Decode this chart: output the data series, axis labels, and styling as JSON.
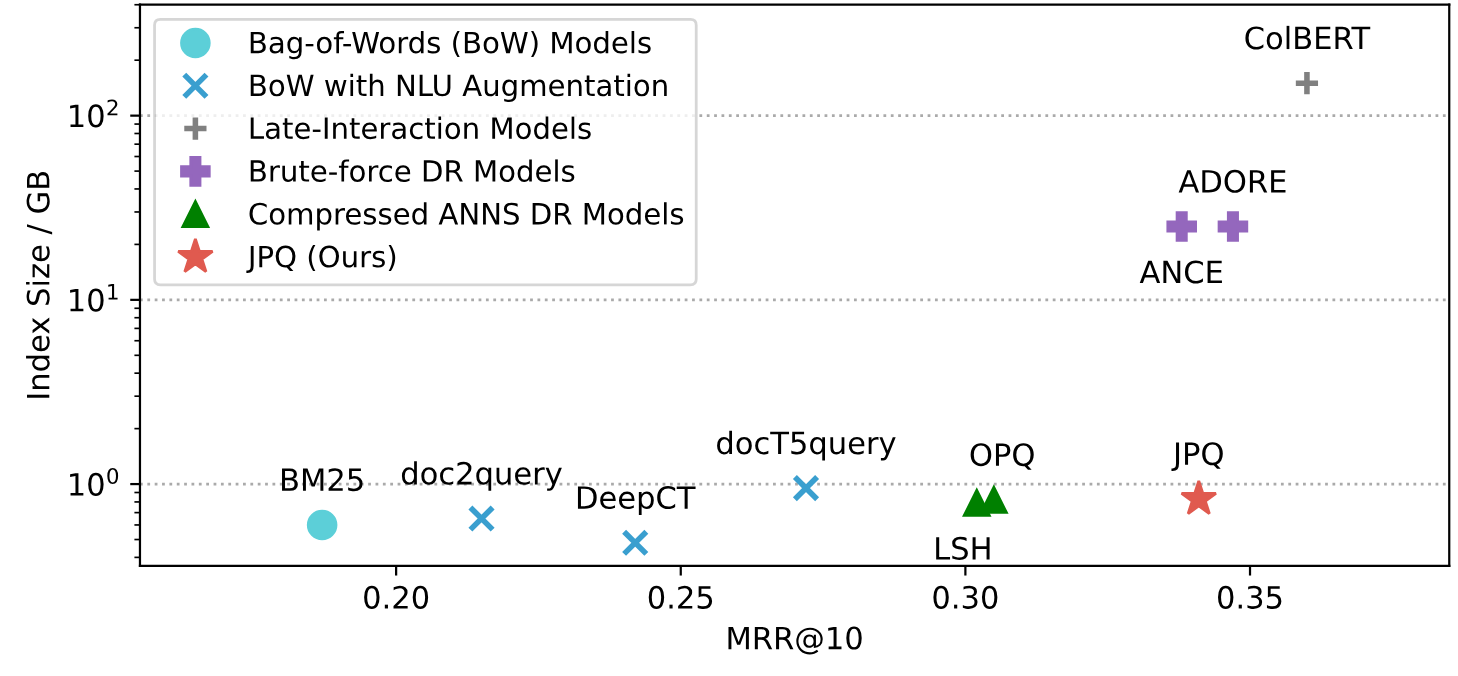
{
  "chart_data": {
    "type": "scatter",
    "xlabel": "MRR@10",
    "ylabel": "Index Size / GB",
    "xlim": [
      0.155,
      0.385
    ],
    "xticks": [
      {
        "value": 0.2,
        "label": "0.20"
      },
      0.25,
      {
        "value": 0.3,
        "label": "0.30"
      },
      0.35
    ],
    "log": "y",
    "ylim": [
      0.36,
      400
    ],
    "yticks": [
      {
        "value": 1,
        "label": "10$^{0}$"
      },
      {
        "value": 10,
        "label": "10$^{1}$"
      },
      {
        "value": 100,
        "label": "10$^{2}$"
      }
    ],
    "grid": "y",
    "legend": "top left",
    "series": [
      {
        "name": "Bag-of-Words (BoW) Models",
        "color": "#5ccfd8",
        "marker": "circle",
        "x": [
          0.187
        ],
        "values": [
          0.6
        ]
      },
      {
        "name": "BoW with NLU Augmentation",
        "color": "#3a9fcf",
        "marker": "cross",
        "x": [
          0.215,
          0.242,
          0.272
        ],
        "values": [
          0.65,
          0.48,
          0.95
        ]
      },
      {
        "name": "Late-Interaction Models",
        "color": "#808080",
        "marker": "plus",
        "x": [
          0.36
        ],
        "values": [
          150
        ]
      },
      {
        "name": "Brute-force DR Models",
        "color": "#9467bd",
        "x": [
          0.338,
          0.347
        ],
        "values": [
          25,
          25
        ]
      },
      {
        "name": "Compressed ANNS DR Models",
        "color": "#008000",
        "marker": "triangle",
        "x": [
          0.302,
          0.305
        ],
        "values": [
          0.79,
          0.82
        ]
      },
      {
        "name": "JPQ (Ours)",
        "color": "#e05a4f",
        "marker": "star",
        "x": [
          0.341
        ],
        "values": [
          0.83
        ]
      }
    ],
    "annotations": [
      {
        "text": "BM25",
        "x": 0.187,
        "y": 0.6
      },
      {
        "text": "doc2query",
        "x": 0.215,
        "y": 0.65
      },
      {
        "text": "DeepCT",
        "x": 0.242,
        "y": 0.48
      },
      {
        "text": "docT5query",
        "x": 0.272,
        "y": 0.95
      },
      {
        "text": "ColBERT",
        "x": 0.36,
        "y": 150
      },
      {
        "text": "ANCE",
        "x": 0.338,
        "y": 25
      },
      {
        "text": "ADORE",
        "x": 0.347,
        "y": 25
      },
      {
        "text": "LSH",
        "x": 0.302,
        "y": 0.79
      },
      {
        "text": "OPQ",
        "x": 0.305,
        "y": 0.82
      },
      {
        "text": "JPQ",
        "x": 0.341,
        "y": 0.83
      }
    ]
  }
}
